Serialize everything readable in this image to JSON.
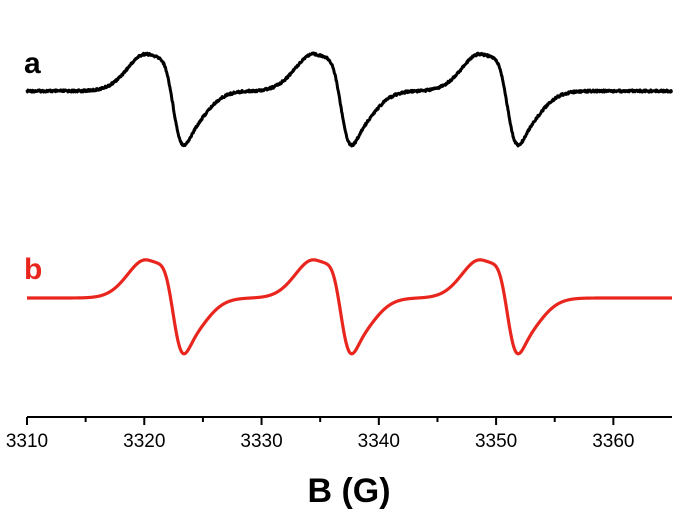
{
  "chart_data": {
    "type": "line",
    "xlabel": "B (G)",
    "ylabel": "",
    "xlim": [
      3310,
      3365
    ],
    "xticks": [
      3310,
      3320,
      3330,
      3340,
      3350,
      3360
    ],
    "grid": false,
    "line_centers": [
      3321.9,
      3336.2,
      3350.4
    ],
    "series": [
      {
        "label": "a",
        "color": "#000000",
        "noisy": true
      },
      {
        "label": "b",
        "color": "#e8261e",
        "noisy": false
      }
    ]
  }
}
